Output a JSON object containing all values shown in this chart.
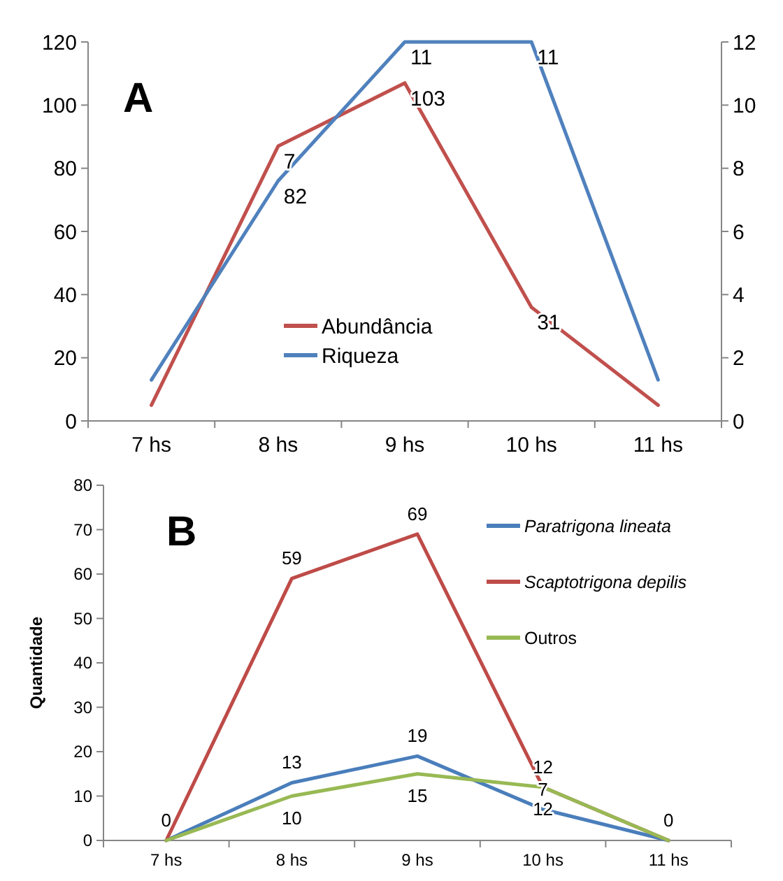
{
  "chart_data": [
    {
      "type": "line",
      "title": "A",
      "categories": [
        "7 hs",
        "8 hs",
        "9 hs",
        "10 hs",
        "11 hs"
      ],
      "series": [
        {
          "name": "Abundância",
          "color": "#c0504d",
          "values": [
            5,
            87,
            107,
            36,
            5
          ]
        },
        {
          "name": "Riqueza",
          "color": "#4f81bd",
          "axis": "y2",
          "values": [
            1.3,
            7.6,
            12,
            12,
            1.3
          ]
        }
      ],
      "ylim": [
        0,
        120
      ],
      "yticks": [
        0,
        20,
        40,
        60,
        80,
        100,
        120
      ],
      "y2lim": [
        0,
        12
      ],
      "y2ticks": [
        0,
        2,
        4,
        6,
        8,
        10,
        12
      ],
      "legend": "bottom",
      "annotations": [
        {
          "text": "7",
          "x": "8 hs",
          "y": 87
        },
        {
          "text": "82",
          "x": "8 hs",
          "y": 76
        },
        {
          "text": "11",
          "x": "9 hs",
          "y": 120
        },
        {
          "text": "103",
          "x": "9 hs",
          "y": 107
        },
        {
          "text": "11",
          "x": "10 hs",
          "y": 120
        },
        {
          "text": "31",
          "x": "10 hs",
          "y": 36
        }
      ]
    },
    {
      "type": "line",
      "title": "B",
      "ylabel": "Quantidade",
      "categories": [
        "7 hs",
        "8 hs",
        "9 hs",
        "10 hs",
        "11 hs"
      ],
      "series": [
        {
          "name": "Paratrigona lineata",
          "color": "#4a7ebb",
          "values": [
            0,
            13,
            19,
            7,
            0
          ],
          "value_labels": [
            null,
            "13",
            "19",
            "7",
            null
          ]
        },
        {
          "name": "Scaptotrigona depilis",
          "color": "#be4b48",
          "values": [
            0,
            59,
            69,
            12,
            0
          ],
          "value_labels": [
            "0",
            "59",
            "69",
            "12",
            "0"
          ]
        },
        {
          "name": "Outros",
          "color": "#98b954",
          "values": [
            0,
            10,
            15,
            12,
            0
          ],
          "value_labels": [
            null,
            "10",
            "15",
            "12",
            null
          ]
        }
      ],
      "ylim": [
        0,
        80
      ],
      "yticks": [
        0,
        10,
        20,
        30,
        40,
        50,
        60,
        70,
        80
      ],
      "legend": "top right"
    }
  ]
}
